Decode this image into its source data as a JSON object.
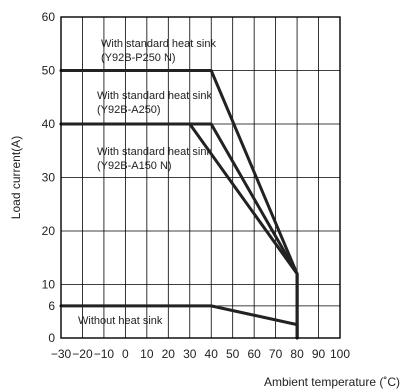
{
  "chart_data": {
    "type": "line",
    "title": "",
    "xlabel": "Ambient temperature (˚C)",
    "ylabel": "Load current(A)",
    "xlim": [
      -30,
      100
    ],
    "ylim": [
      0,
      60
    ],
    "x_ticks": [
      -30,
      -20,
      -10,
      0,
      10,
      20,
      30,
      40,
      50,
      60,
      70,
      80,
      90,
      100
    ],
    "x_tick_labels": [
      "−30",
      "−20",
      "−10",
      "0",
      "10",
      "20",
      "30",
      "40",
      "50",
      "60",
      "70",
      "80",
      "90",
      "100"
    ],
    "y_ticks": [
      0,
      6,
      10,
      20,
      30,
      40,
      50,
      60
    ],
    "y_tick_labels": [
      "0",
      "6",
      "10",
      "20",
      "30",
      "40",
      "50",
      "60"
    ],
    "grid": true,
    "series": [
      {
        "name": "With standard heat sink (Y92B-P250 N)",
        "label_lines": [
          "With standard heat sink",
          "(Y92B-P250 N)"
        ],
        "x": [
          -30,
          40,
          80,
          80
        ],
        "y": [
          50,
          50,
          12,
          0
        ]
      },
      {
        "name": "With standard heat sink (Y92B-A250)",
        "label_lines": [
          "With standard heat sink",
          "(Y92B-A250)"
        ],
        "x": [
          -30,
          40,
          80,
          80
        ],
        "y": [
          40,
          40,
          12,
          0
        ]
      },
      {
        "name": "With standard heat sink (Y92B-A150 N)",
        "label_lines": [
          "With standard heat sink",
          "(Y92B-A150 N)"
        ],
        "x": [
          -30,
          30,
          80,
          80
        ],
        "y": [
          40,
          40,
          12,
          0
        ]
      },
      {
        "name": "Without heat sink",
        "label_lines": [
          "Without heat sink"
        ],
        "x": [
          -30,
          40,
          80,
          80
        ],
        "y": [
          6,
          6,
          2.5,
          0
        ]
      }
    ]
  }
}
